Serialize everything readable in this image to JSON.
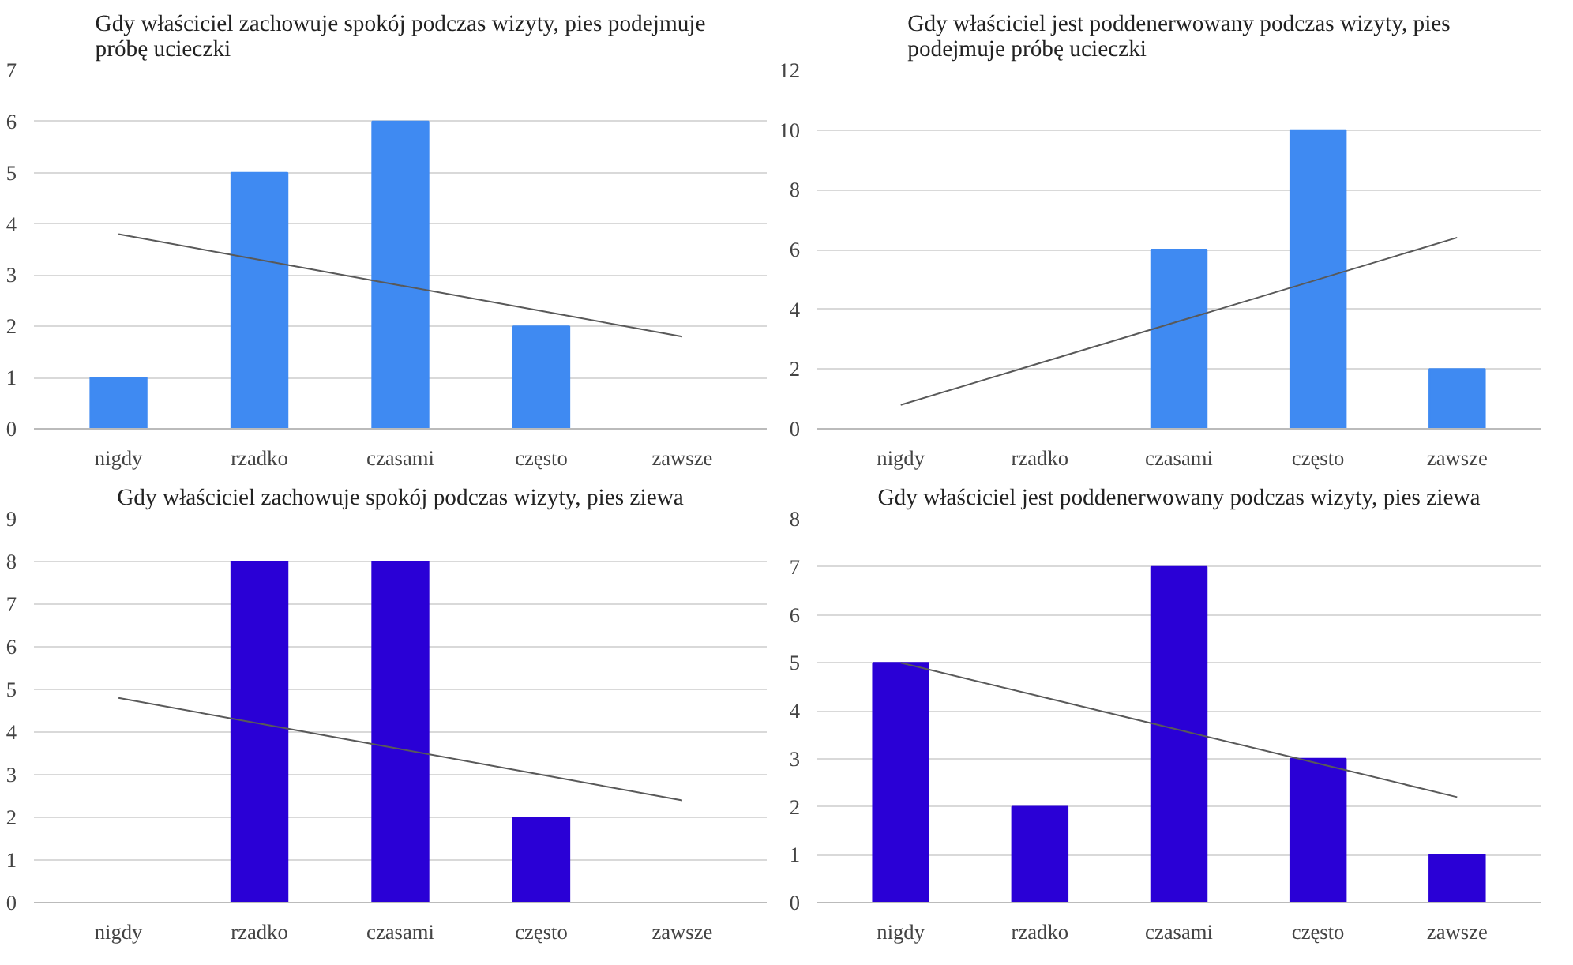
{
  "chart_data": [
    {
      "type": "bar",
      "title": "Gdy właściciel zachowuje spokój podczas wizyty, pies podejmuje próbę ucieczki",
      "categories": [
        "nigdy",
        "rzadko",
        "czasami",
        "często",
        "zawsze"
      ],
      "ylim": [
        0,
        7
      ],
      "yticks": [
        0,
        1,
        2,
        3,
        4,
        5,
        6,
        7
      ],
      "grid": "y",
      "series": [
        {
          "color": "#3f8af2",
          "values": [
            1,
            5,
            6,
            2,
            0
          ]
        },
        {
          "type": "line",
          "color": "#595959",
          "values": [
            3.8,
            3.3,
            2.8,
            2.3,
            1.8
          ]
        }
      ]
    },
    {
      "type": "bar",
      "title": "Gdy właściciel jest poddenerwowany podczas wizyty, pies podejmuje próbę ucieczki",
      "categories": [
        "nigdy",
        "rzadko",
        "czasami",
        "często",
        "zawsze"
      ],
      "ylim": [
        0,
        12
      ],
      "yticks": [
        0,
        2,
        4,
        6,
        8,
        10,
        12
      ],
      "grid": "y",
      "series": [
        {
          "color": "#3f8af2",
          "values": [
            0,
            0,
            6,
            10,
            2
          ]
        },
        {
          "type": "line",
          "color": "#595959",
          "values": [
            0.8,
            2.2,
            3.6,
            5.0,
            6.4
          ]
        }
      ]
    },
    {
      "type": "bar",
      "title": "Gdy właściciel zachowuje spokój podczas wizyty, pies ziewa",
      "categories": [
        "nigdy",
        "rzadko",
        "czasami",
        "często",
        "zawsze"
      ],
      "ylim": [
        0,
        9
      ],
      "yticks": [
        0,
        1,
        2,
        3,
        4,
        5,
        6,
        7,
        8,
        9
      ],
      "grid": "y",
      "series": [
        {
          "color": "#2a00d6",
          "values": [
            0,
            8,
            8,
            2,
            0
          ]
        },
        {
          "type": "line",
          "color": "#595959",
          "values": [
            4.8,
            4.2,
            3.6,
            3.0,
            2.4
          ]
        }
      ]
    },
    {
      "type": "bar",
      "title": "Gdy właściciel jest poddenerwowany podczas wizyty, pies ziewa",
      "categories": [
        "nigdy",
        "rzadko",
        "czasami",
        "często",
        "zawsze"
      ],
      "ylim": [
        0,
        8
      ],
      "yticks": [
        0,
        1,
        2,
        3,
        4,
        5,
        6,
        7,
        8
      ],
      "grid": "y",
      "series": [
        {
          "color": "#2a00d6",
          "values": [
            5,
            2,
            7,
            3,
            1
          ]
        },
        {
          "type": "line",
          "color": "#595959",
          "values": [
            5.0,
            4.3,
            3.6,
            2.9,
            2.2
          ]
        }
      ]
    }
  ]
}
